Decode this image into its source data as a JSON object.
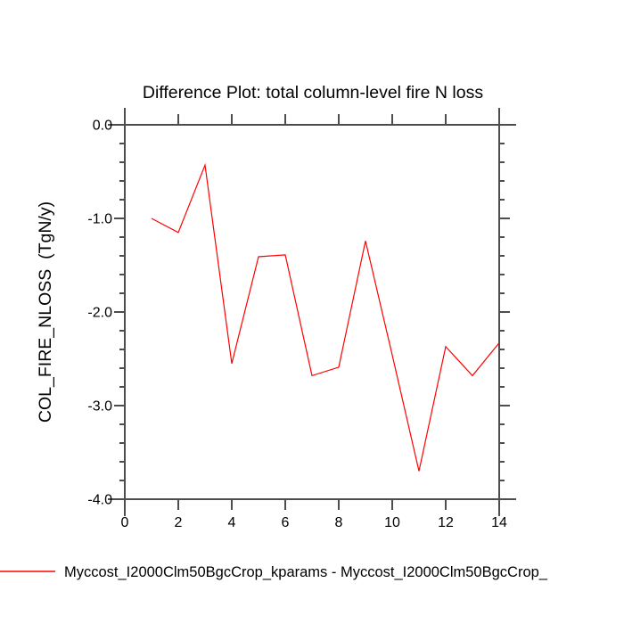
{
  "title": "Difference Plot: total column-level fire N loss",
  "colors": {
    "line": "#ff0000",
    "axis": "#4d4d4d",
    "text": "#000000",
    "background": "#ffffff"
  },
  "legend": {
    "label": "Myccost_I2000Clm50BgcCrop_kparams - Myccost_I2000Clm50BgcCrop_",
    "swatch_color": "#ff0000"
  },
  "chart_data": {
    "type": "line",
    "title": "Difference Plot: total column-level fire N loss",
    "xlabel": "",
    "ylabel": "COL_FIRE_NLOSS  (TgN/y)",
    "x": [
      1,
      2,
      3,
      4,
      5,
      6,
      7,
      8,
      9,
      10,
      11,
      12,
      13,
      14
    ],
    "y": [
      -1.0,
      -1.15,
      -0.43,
      -2.55,
      -1.41,
      -1.39,
      -2.68,
      -2.59,
      -1.24,
      -2.46,
      -3.7,
      -2.37,
      -2.68,
      -2.33
    ],
    "series_name": "Myccost_I2000Clm50BgcCrop_kparams - Myccost_I2000Clm50BgcCrop_",
    "xlim": [
      0,
      14
    ],
    "ylim": [
      -4.0,
      0.0
    ],
    "xticks": [
      0,
      2,
      4,
      6,
      8,
      10,
      12,
      14
    ],
    "xtick_labels": [
      "0",
      "2",
      "4",
      "6",
      "8",
      "10",
      "12",
      "14"
    ],
    "yticks": [
      0.0,
      -1.0,
      -2.0,
      -3.0,
      -4.0
    ],
    "ytick_labels": [
      "0.0",
      "-1.0",
      "-2.0",
      "-3.0",
      "-4.0"
    ],
    "y_minor_step": 0.2,
    "grid": false,
    "legend_position": "bottom-left",
    "line_color": "#ff0000"
  }
}
